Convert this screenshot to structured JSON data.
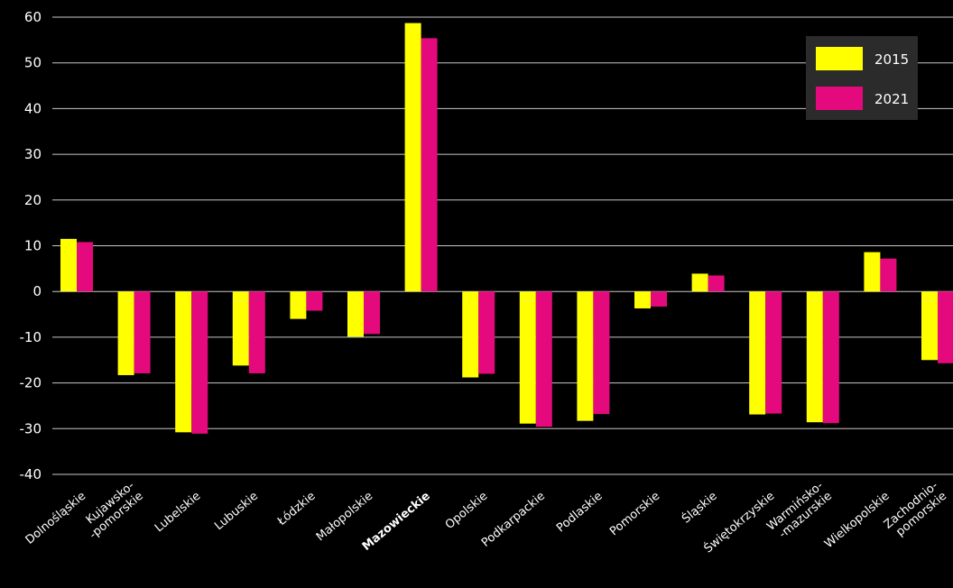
{
  "chart_data": {
    "type": "bar",
    "categories": [
      [
        "Dolnośląskie"
      ],
      [
        "Kujawsko-",
        "-pomorskie"
      ],
      [
        "Lubelskie"
      ],
      [
        "Lubuskie"
      ],
      [
        "Łódzkie"
      ],
      [
        "Małopolskie"
      ],
      [
        "Mazowieckie"
      ],
      [
        "Opolskie"
      ],
      [
        "Podkarpackie"
      ],
      [
        "Podlaskie"
      ],
      [
        "Pomorskie"
      ],
      [
        "Śląskie"
      ],
      [
        "Świętokrzyskie"
      ],
      [
        "Warmińsko-",
        "-mazurskie"
      ],
      [
        "Wielkopolskie"
      ],
      [
        "Zachodnio-",
        "pomorskie"
      ]
    ],
    "highlight_category": "Mazowieckie",
    "series": [
      {
        "name": "2015",
        "color": "#ffff00",
        "values": [
          11.5,
          -18.3,
          -30.8,
          -16.2,
          -6.0,
          -9.9,
          58.7,
          -18.8,
          -28.9,
          -28.3,
          -3.7,
          3.9,
          -26.9,
          -28.6,
          8.6,
          -15.0
        ]
      },
      {
        "name": "2021",
        "color": "#e4097c",
        "values": [
          10.8,
          -17.9,
          -31.1,
          -17.9,
          -4.2,
          -9.3,
          55.4,
          -18.0,
          -29.6,
          -26.8,
          -3.3,
          3.5,
          -26.7,
          -28.8,
          7.2,
          -15.7
        ]
      }
    ],
    "ylim": [
      -40,
      60
    ],
    "yticks": [
      -40,
      -30,
      -20,
      -10,
      0,
      10,
      20,
      30,
      40,
      50,
      60
    ],
    "grid": true,
    "legend": "top-right",
    "colors": {
      "background": "#000000",
      "grid": "#c8c8c8",
      "legend_bg": "#2b2b2b",
      "text": "#ffffff"
    }
  }
}
